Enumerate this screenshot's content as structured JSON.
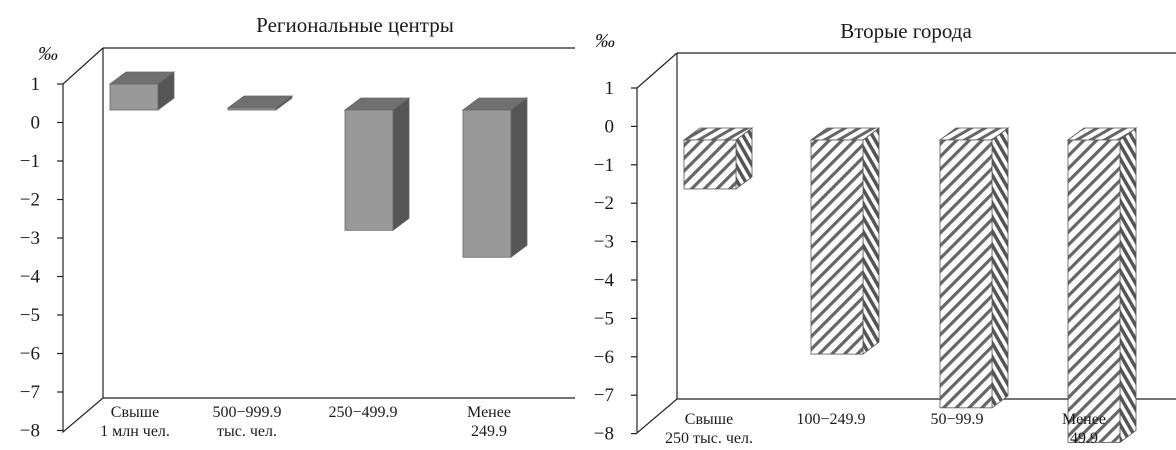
{
  "chart_data": [
    {
      "type": "bar",
      "style": "3d-solid",
      "title": "Региональные центры",
      "ylabel": "‰",
      "ylim": [
        -8,
        1
      ],
      "yticks": [
        "1",
        "0",
        "−1",
        "−2",
        "−3",
        "−4",
        "−5",
        "−6",
        "−7",
        "−8"
      ],
      "categories": [
        [
          "Свыше",
          "1 млн чел."
        ],
        [
          "500−999.9",
          "тыс. чел."
        ],
        [
          "250−499.9"
        ],
        [
          "Менее",
          "249.9"
        ]
      ],
      "values": [
        1.0,
        0.05,
        -2.8,
        -3.5
      ],
      "colors": {
        "front": "#999999",
        "side": "#555555",
        "top": "#707070"
      }
    },
    {
      "type": "bar",
      "style": "3d-hatched",
      "title": "Вторые города",
      "ylabel": "‰",
      "ylim": [
        -8,
        1
      ],
      "yticks": [
        "1",
        "0",
        "−1",
        "−2",
        "−3",
        "−4",
        "−5",
        "−6",
        "−7",
        "−8"
      ],
      "categories": [
        [
          "Свыше",
          "250 тыс. чел."
        ],
        [
          "100−249.9"
        ],
        [
          "50−99.9"
        ],
        [
          "Менее",
          "49.9"
        ]
      ],
      "values": [
        -0.9,
        -5.2,
        -6.6,
        -7.5
      ],
      "colors": {
        "hatch": "#666666",
        "side": "#555555",
        "top": "#707070"
      }
    }
  ]
}
